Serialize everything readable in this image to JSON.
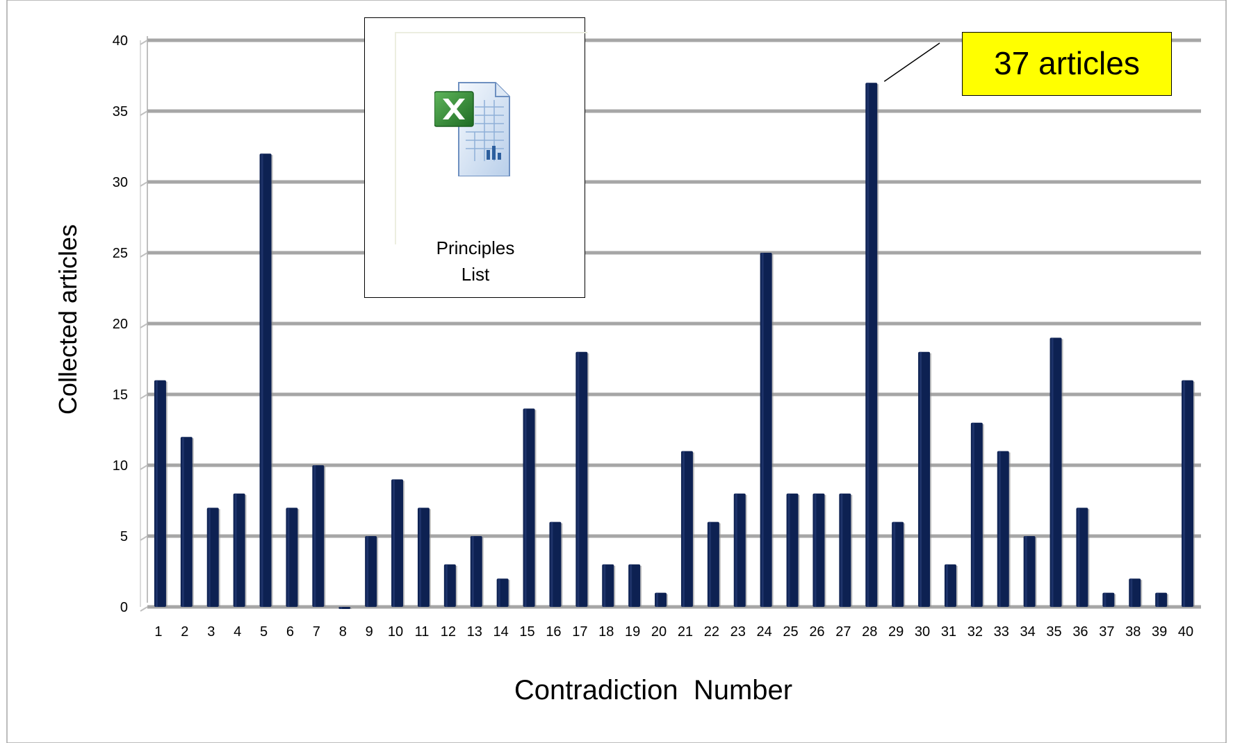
{
  "chart_data": {
    "type": "bar",
    "title": "",
    "xlabel": "Contradiction  Number",
    "ylabel": "Collected articles",
    "ylim": [
      0,
      40
    ],
    "yticks": [
      0,
      5,
      10,
      15,
      20,
      25,
      30,
      35,
      40
    ],
    "grid": true,
    "categories": [
      "1",
      "2",
      "3",
      "4",
      "5",
      "6",
      "7",
      "8",
      "9",
      "10",
      "11",
      "12",
      "13",
      "14",
      "15",
      "16",
      "17",
      "18",
      "19",
      "20",
      "21",
      "22",
      "23",
      "24",
      "25",
      "26",
      "27",
      "28",
      "29",
      "30",
      "31",
      "32",
      "33",
      "34",
      "35",
      "36",
      "37",
      "38",
      "39",
      "40"
    ],
    "series": [
      {
        "values": [
          16,
          12,
          7,
          8,
          32,
          7,
          10,
          0,
          5,
          9,
          7,
          3,
          5,
          2,
          14,
          6,
          18,
          3,
          3,
          1,
          11,
          6,
          8,
          25,
          8,
          8,
          8,
          37,
          6,
          18,
          3,
          13,
          11,
          5,
          19,
          7,
          1,
          2,
          1,
          16
        ],
        "color": "#0d2152"
      }
    ],
    "annotations": [
      {
        "text": "37 articles",
        "category": "28",
        "value": 37,
        "background": "#ffff00"
      }
    ]
  },
  "embedded_object": {
    "icon": "excel-file-icon",
    "label_lines": [
      "Principles",
      "List"
    ]
  },
  "colors": {
    "bar": "#0d2152",
    "gridline": "#a6a6a6",
    "callout_fill": "#ffff00"
  }
}
